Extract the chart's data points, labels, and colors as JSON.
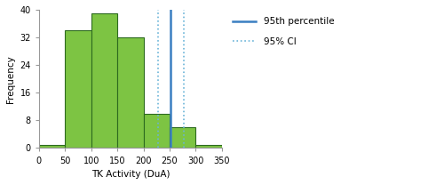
{
  "bin_edges": [
    0,
    50,
    100,
    150,
    200,
    250,
    300,
    350
  ],
  "frequencies": [
    1,
    34,
    39,
    32,
    10,
    6,
    1
  ],
  "bar_color": "#7DC443",
  "bar_edgecolor": "#2D6A1F",
  "bar_linewidth": 0.8,
  "percentile_95": 252,
  "ci_lower": 228,
  "ci_upper": 278,
  "percentile_color": "#3A7FC1",
  "percentile_linewidth": 1.8,
  "ci_color": "#6AB4D8",
  "ci_linewidth": 1.2,
  "ci_linestyle": "dotted",
  "xlabel": "TK Activity (DuA)",
  "ylabel": "Frequency",
  "xlim": [
    0,
    350
  ],
  "ylim": [
    0,
    40
  ],
  "xticks": [
    0,
    50,
    100,
    150,
    200,
    250,
    300,
    350
  ],
  "yticks": [
    0,
    8,
    16,
    24,
    32,
    40
  ],
  "legend_95th": "95th percentile",
  "legend_ci": "95% CI",
  "axis_fontsize": 7.5,
  "tick_fontsize": 7,
  "legend_fontsize": 7.5
}
